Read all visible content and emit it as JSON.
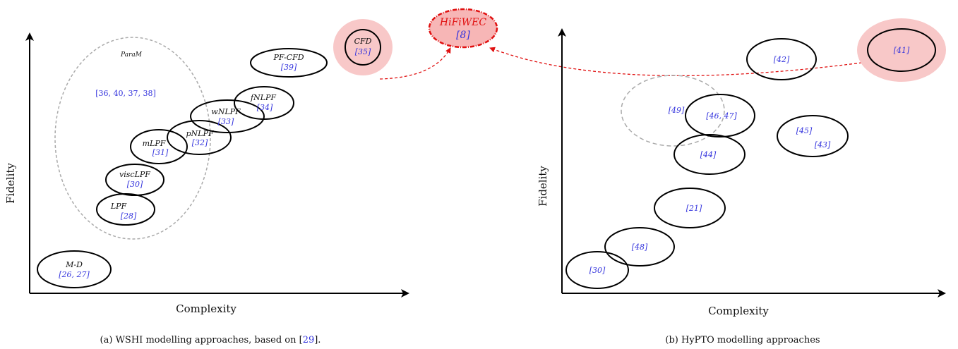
{
  "panel_a": {
    "x_axis_label": "Complexity",
    "y_axis_label": "Fidelity",
    "caption_text": "(a) WSHI modelling approaches, based on [",
    "caption_ref": "29",
    "caption_end": "].",
    "group_label": "ParaM",
    "group_refs": [
      "36",
      "40",
      "37",
      "38"
    ],
    "nodes": {
      "md": {
        "label": "M-D",
        "refs": "[26, 27]"
      },
      "lpf": {
        "label": "LPF",
        "refs": "[28]"
      },
      "visc": {
        "label": "viscLPF",
        "refs": "[30]"
      },
      "mlpf": {
        "label": "mLPF",
        "refs": "[31]"
      },
      "pnlpf": {
        "label": "pNLPF",
        "refs": "[32]"
      },
      "wnlpf": {
        "label": "wNLPF",
        "refs": "[33]"
      },
      "fnlpf": {
        "label": "fNLPF",
        "refs": "[34]"
      },
      "pfcfd": {
        "label": "PF-CFD",
        "refs": "[39]"
      },
      "cfd": {
        "label": "CFD",
        "refs": "[35]"
      }
    }
  },
  "hifiwec": {
    "label": "HiFiWEC",
    "ref": "[8]"
  },
  "panel_b": {
    "x_axis_label": "Complexity",
    "y_axis_label": "Fidelity",
    "caption": "(b) HyPTO modelling approaches",
    "nodes": {
      "n30": "[30]",
      "n48": "[48]",
      "n21": "[21]",
      "n44": "[44]",
      "n49": "[49]",
      "n4647": "[46, 47]",
      "n45": "[45]",
      "n43": "[43]",
      "n42": "[42]",
      "n41": "[41]"
    }
  },
  "colors": {
    "highlight_fill": "#f8c8c8",
    "hifi_fill": "#f7b6b6",
    "hifi_border": "#e01010",
    "arrow_red": "#e01010",
    "ref_blue": "#3333dd",
    "dashed_gray": "#aaaaaa"
  }
}
